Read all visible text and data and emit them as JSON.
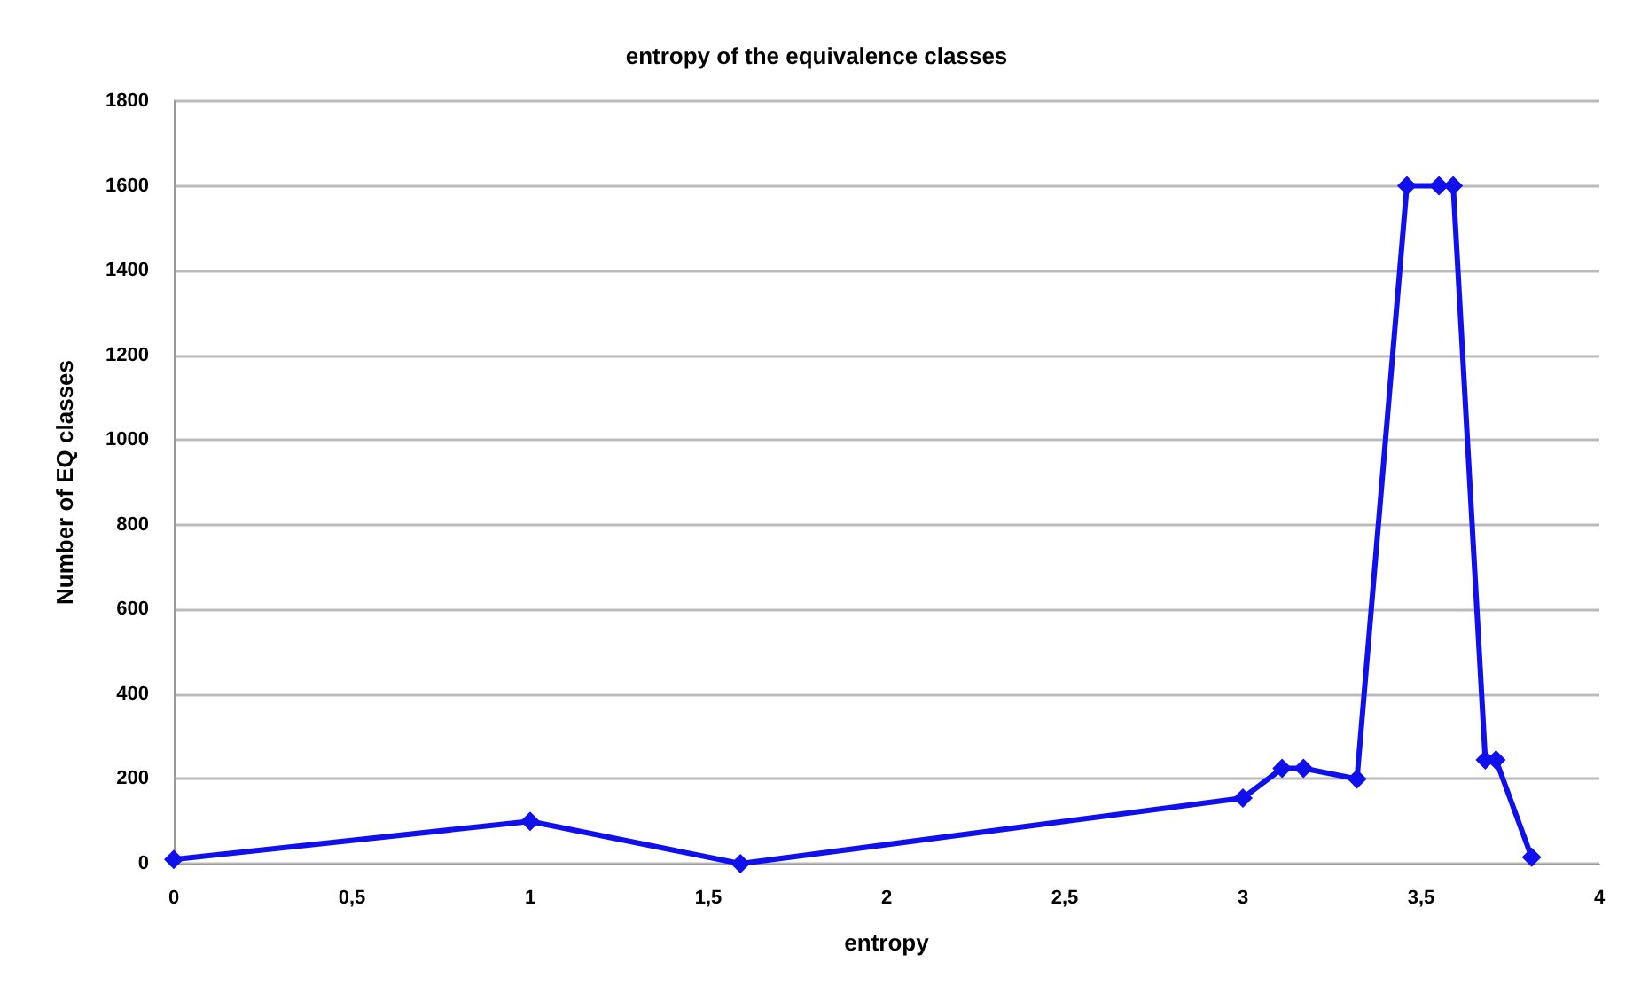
{
  "chart_data": {
    "type": "line",
    "title": "entropy of the equivalence classes",
    "xlabel": "entropy",
    "ylabel": "Number of EQ classes",
    "series": [
      {
        "color": "#1010ee",
        "x": [
          0,
          1,
          1.59,
          3,
          3.11,
          3.17,
          3.32,
          3.46,
          3.55,
          3.59,
          3.68,
          3.71,
          3.81
        ],
        "values": [
          10,
          100,
          0,
          155,
          225,
          225,
          200,
          1600,
          1600,
          1600,
          245,
          245,
          15
        ]
      }
    ],
    "xlim": [
      0,
      4
    ],
    "xticks": [
      0,
      {
        "value": 0.5,
        "label": "0,5"
      },
      1,
      {
        "value": 1.5,
        "label": "1,5"
      },
      2,
      {
        "value": 2.5,
        "label": "2,5"
      },
      3,
      {
        "value": 3.5,
        "label": "3,5"
      },
      4
    ],
    "ylim": [
      0,
      1800
    ],
    "yticks": [
      0,
      200,
      400,
      600,
      800,
      1000,
      1200,
      1400,
      1600,
      1800
    ],
    "grid": "y",
    "marker": "diamond",
    "line_style": "solid"
  }
}
